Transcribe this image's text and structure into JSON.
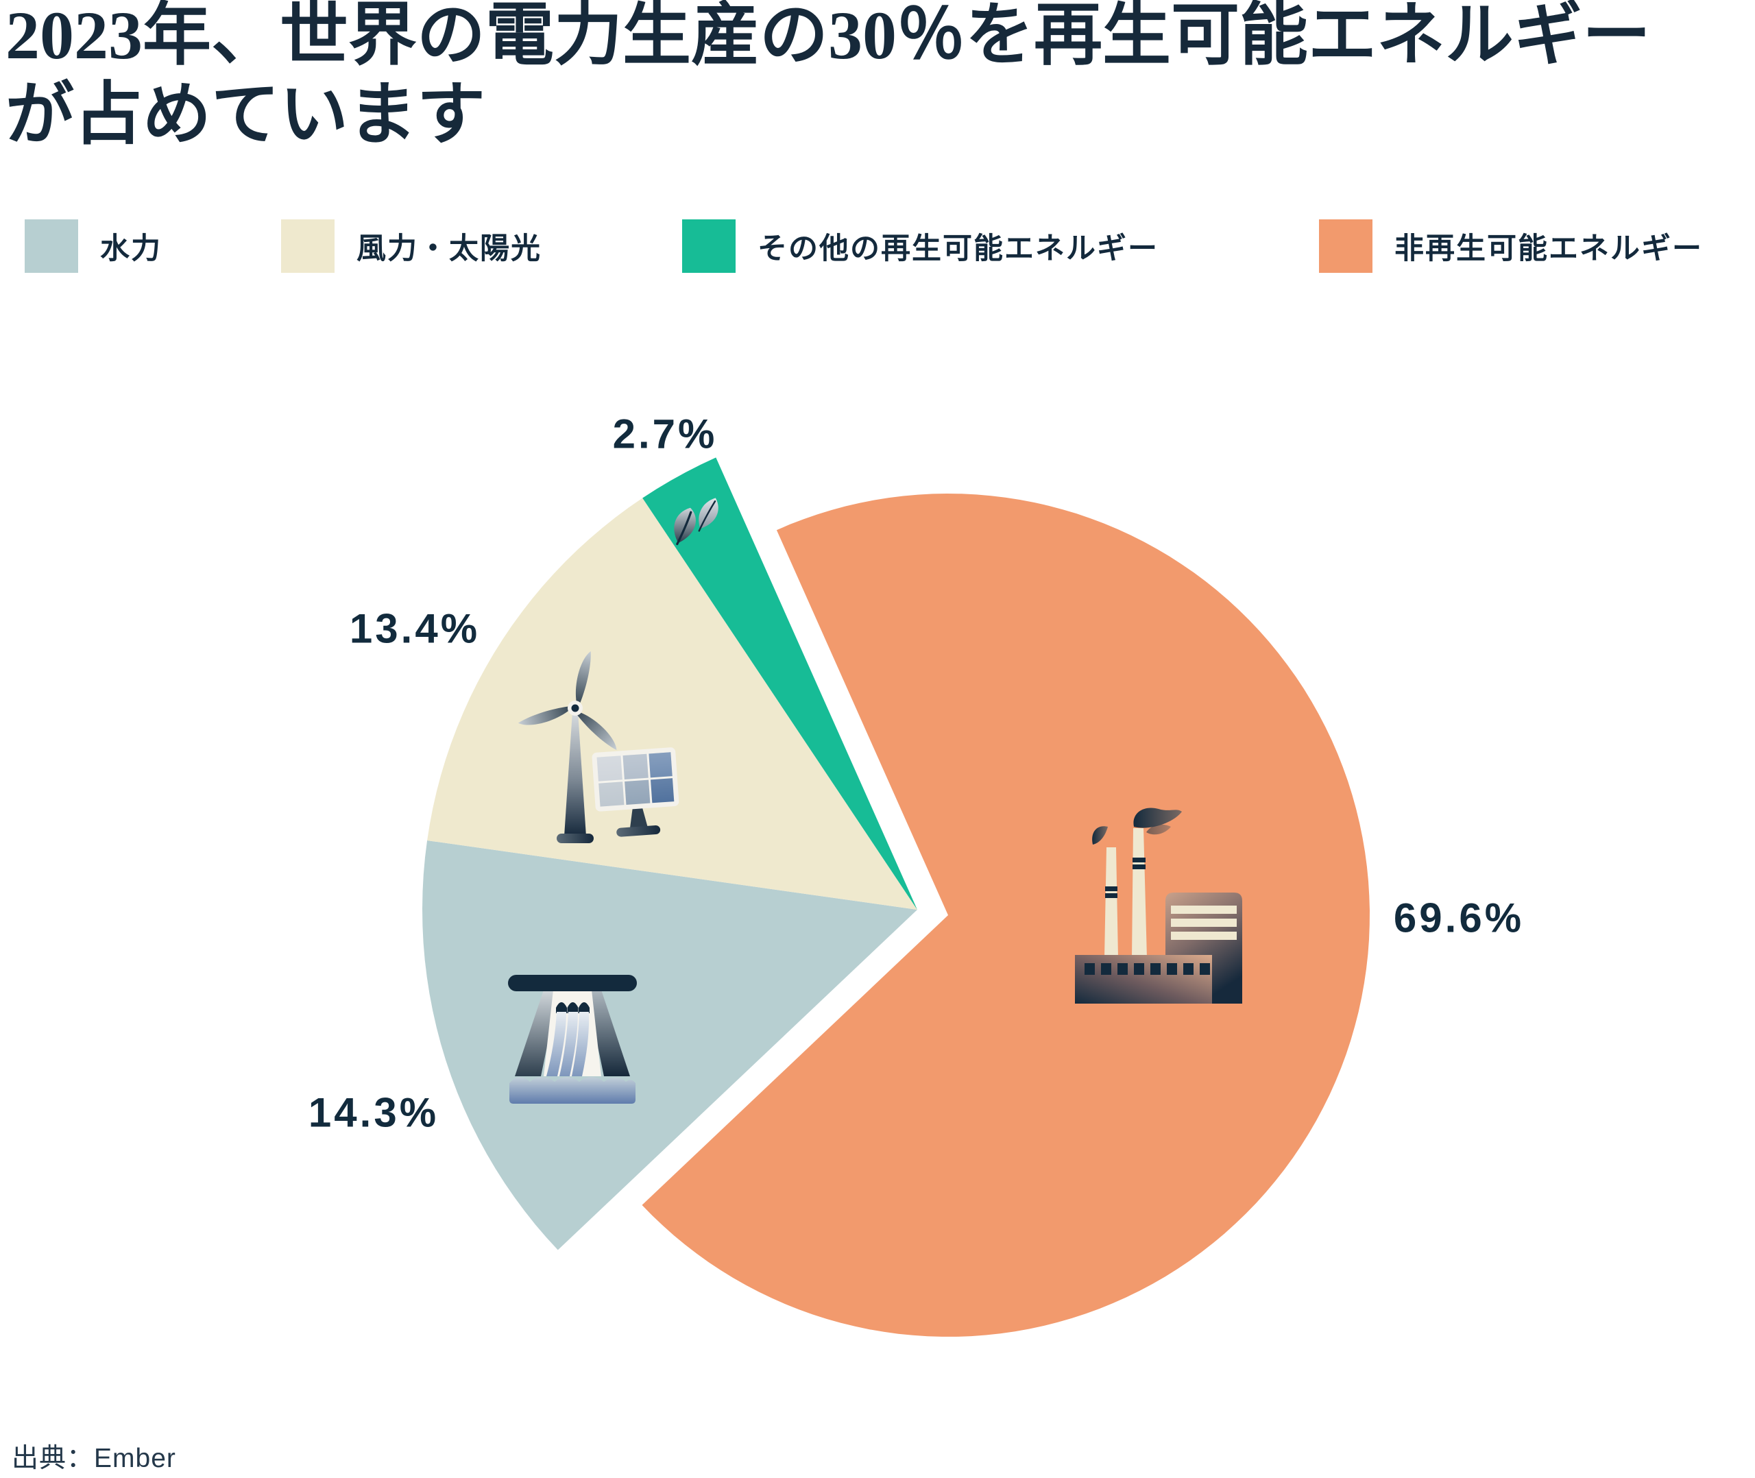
{
  "title": {
    "full": "2023年、世界の電力生産の30％を再生可能エネルギーが占めています",
    "lines": [
      "2023年、世界の電力生産の30％を再生可能エネルギー",
      "が占めています"
    ]
  },
  "legend": {
    "items": [
      {
        "label": "水力",
        "color": "#B7CFD1"
      },
      {
        "label": "風力・太陽光",
        "color": "#EFE9CE"
      },
      {
        "label": "その他の再生可能エネルギー",
        "color": "#17BC96"
      },
      {
        "label": "非再生可能エネルギー",
        "color": "#F29A6D"
      }
    ]
  },
  "chart_data": {
    "type": "pie",
    "title": "2023年、世界の電力生産の30％を再生可能エネルギーが占めています",
    "total_renewable_share_pct": 30,
    "start_angle_deg": 114,
    "direction": "clockwise",
    "legend_position": "top",
    "slices": [
      {
        "id": "nonrenewable",
        "label": "非再生可能エネルギー",
        "value": 69.6,
        "display": "69.6%",
        "color": "#F29A6D",
        "renewable": false,
        "icon": "factory-icon"
      },
      {
        "id": "hydro",
        "label": "水力",
        "value": 14.3,
        "display": "14.3%",
        "color": "#B7CFD1",
        "renewable": true,
        "icon": "dam-icon"
      },
      {
        "id": "wind-solar",
        "label": "風力・太陽光",
        "value": 13.4,
        "display": "13.4%",
        "color": "#EFE9CE",
        "renewable": true,
        "icon": "wind-turbine-solar-panel-icon"
      },
      {
        "id": "other-renewables",
        "label": "その他の再生可能エネルギー",
        "value": 2.7,
        "display": "2.7%",
        "color": "#17BC96",
        "renewable": true,
        "icon": "leaf-icon"
      }
    ]
  },
  "colors": {
    "background": "#FFFFFF",
    "text_navy": "#13293C",
    "orange": "#F29A6D",
    "hydro_blue": "#B7CFD1",
    "cream": "#EFE9CE",
    "teal": "#17BC96"
  },
  "source": {
    "text": "出典：Ember"
  }
}
